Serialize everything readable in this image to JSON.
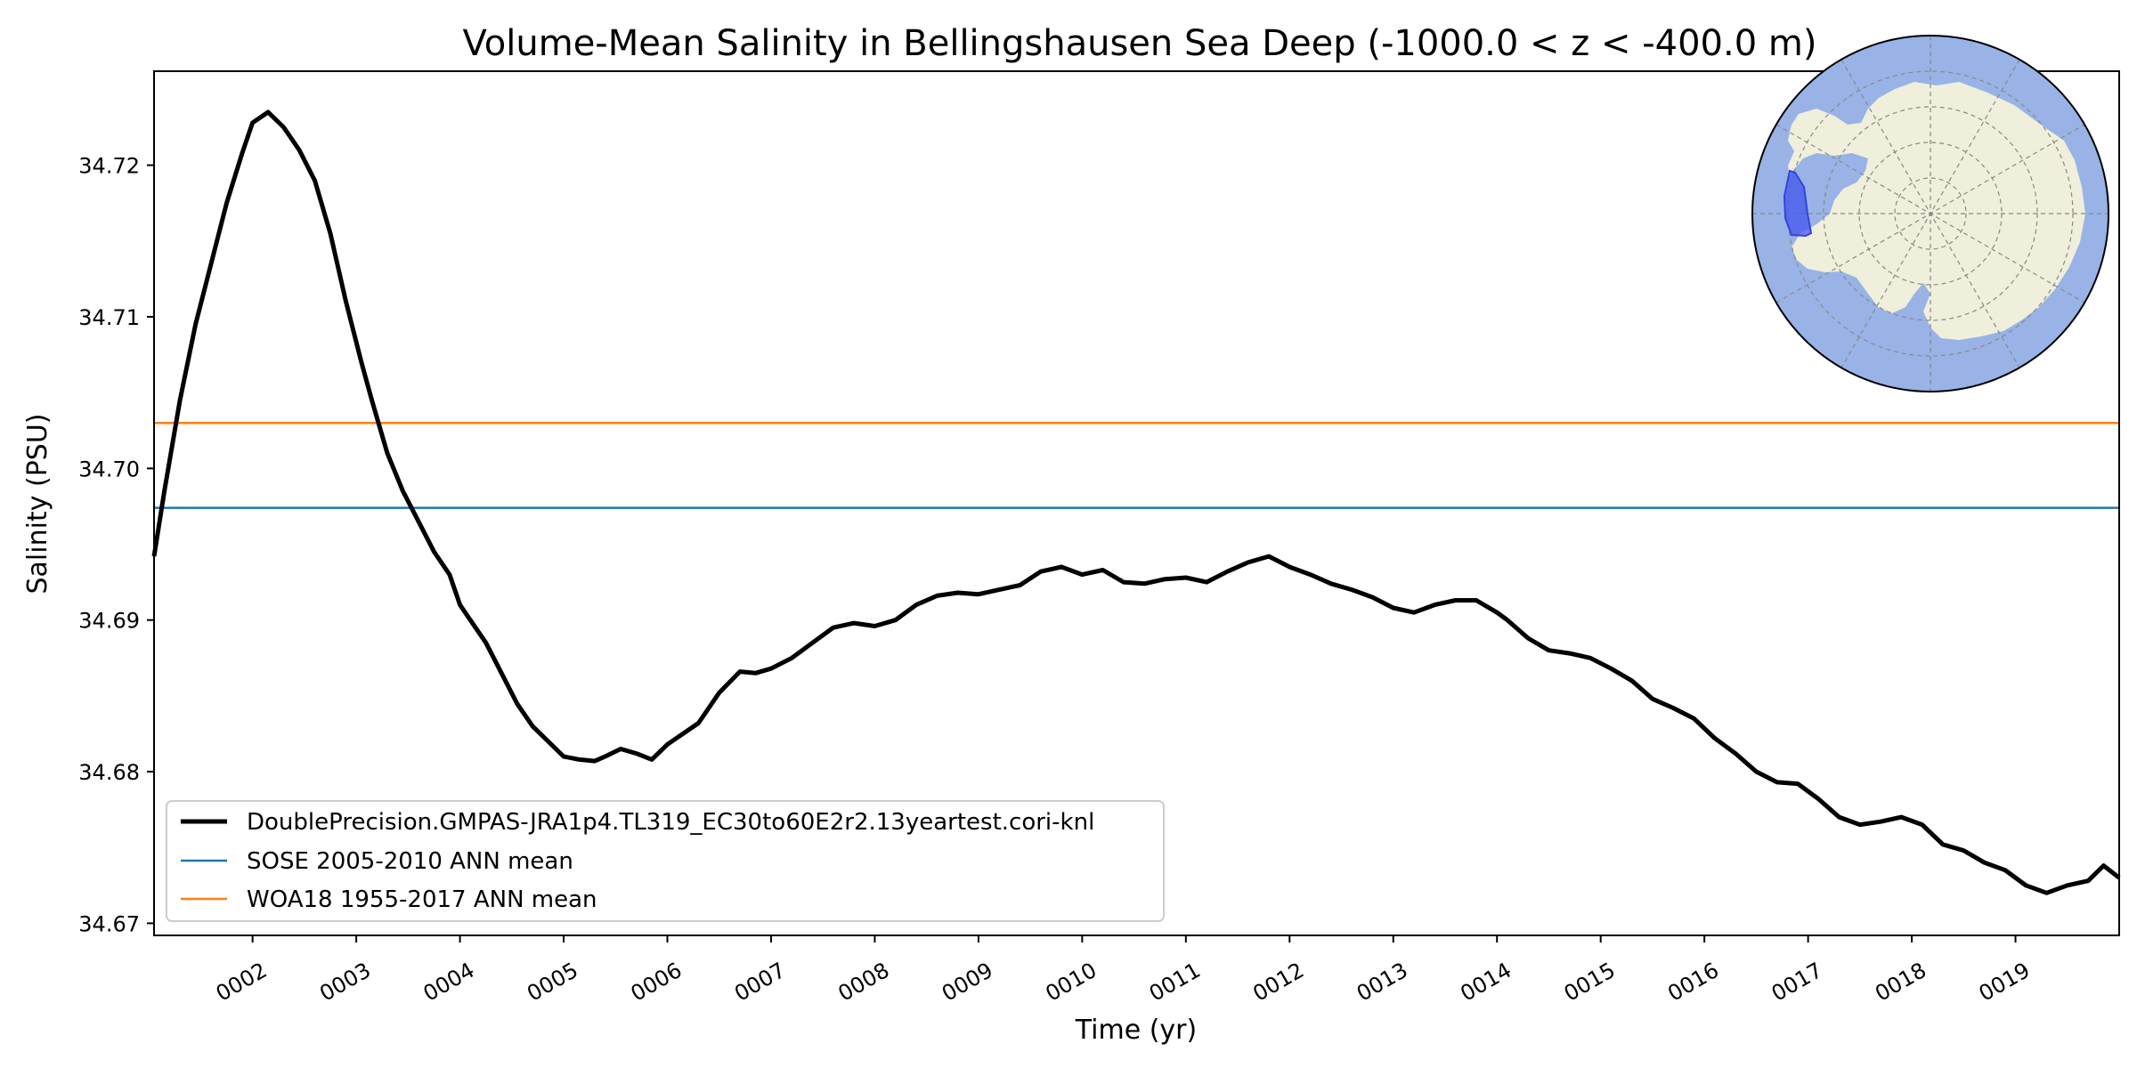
{
  "chart_data": {
    "type": "line",
    "title": "Volume-Mean Salinity in Bellingshausen Sea Deep (-1000.0 < z < -400.0 m)",
    "xlabel": "Time (yr)",
    "ylabel": "Salinity (PSU)",
    "xlim": [
      1.05,
      20.0
    ],
    "ylim": [
      34.6692,
      34.7262
    ],
    "x_ticks": [
      2,
      3,
      4,
      5,
      6,
      7,
      8,
      9,
      10,
      11,
      12,
      13,
      14,
      15,
      16,
      17,
      18,
      19
    ],
    "x_tick_labels": [
      "0002",
      "0003",
      "0004",
      "0005",
      "0006",
      "0007",
      "0008",
      "0009",
      "0010",
      "0011",
      "0012",
      "0013",
      "0014",
      "0015",
      "0016",
      "0017",
      "0018",
      "0019"
    ],
    "y_ticks": [
      34.67,
      34.68,
      34.69,
      34.7,
      34.71,
      34.72
    ],
    "y_tick_labels": [
      "34.67",
      "34.68",
      "34.69",
      "34.70",
      "34.71",
      "34.72"
    ],
    "grid": false,
    "legend_position": "lower-left",
    "series": [
      {
        "name": "DoublePrecision.GMPAS-JRA1p4.TL319_EC30to60E2r2.13yeartest.cori-knl",
        "color": "#000000",
        "style": "line",
        "x": [
          1.05,
          1.15,
          1.3,
          1.45,
          1.6,
          1.75,
          1.9,
          2.0,
          2.15,
          2.3,
          2.45,
          2.6,
          2.75,
          2.9,
          3.05,
          3.15,
          3.3,
          3.45,
          3.6,
          3.75,
          3.9,
          4.0,
          4.1,
          4.25,
          4.4,
          4.55,
          4.7,
          4.85,
          5.0,
          5.15,
          5.3,
          5.4,
          5.55,
          5.7,
          5.85,
          6.0,
          6.15,
          6.3,
          6.5,
          6.7,
          6.85,
          7.0,
          7.2,
          7.4,
          7.6,
          7.8,
          8.0,
          8.2,
          8.4,
          8.6,
          8.8,
          9.0,
          9.2,
          9.4,
          9.6,
          9.8,
          10.0,
          10.2,
          10.4,
          10.6,
          10.8,
          11.0,
          11.2,
          11.4,
          11.6,
          11.8,
          12.0,
          12.2,
          12.4,
          12.6,
          12.8,
          13.0,
          13.2,
          13.4,
          13.6,
          13.8,
          14.0,
          14.1,
          14.3,
          14.5,
          14.7,
          14.9,
          15.1,
          15.3,
          15.5,
          15.7,
          15.9,
          16.1,
          16.3,
          16.5,
          16.7,
          16.9,
          17.1,
          17.3,
          17.5,
          17.7,
          17.9,
          18.1,
          18.3,
          18.5,
          18.7,
          18.9,
          19.1,
          19.3,
          19.5,
          19.7,
          19.85,
          20.0
        ],
        "y": [
          34.6942,
          34.6985,
          34.7045,
          34.7095,
          34.7135,
          34.7175,
          34.7208,
          34.7228,
          34.7235,
          34.7225,
          34.721,
          34.719,
          34.7155,
          34.711,
          34.707,
          34.7045,
          34.701,
          34.6985,
          34.6965,
          34.6945,
          34.693,
          34.691,
          34.69,
          34.6885,
          34.6865,
          34.6845,
          34.683,
          34.682,
          34.681,
          34.6808,
          34.6807,
          34.681,
          34.6815,
          34.6812,
          34.6808,
          34.6818,
          34.6825,
          34.6832,
          34.6852,
          34.6866,
          34.6865,
          34.6868,
          34.6875,
          34.6885,
          34.6895,
          34.6898,
          34.6896,
          34.69,
          34.691,
          34.6916,
          34.6918,
          34.6917,
          34.692,
          34.6923,
          34.6932,
          34.6935,
          34.693,
          34.6933,
          34.6925,
          34.6924,
          34.6927,
          34.6928,
          34.6925,
          34.6932,
          34.6938,
          34.6942,
          34.6935,
          34.693,
          34.6924,
          34.692,
          34.6915,
          34.6908,
          34.6905,
          34.691,
          34.6913,
          34.6913,
          34.6905,
          34.69,
          34.6888,
          34.688,
          34.6878,
          34.6875,
          34.6868,
          34.686,
          34.6848,
          34.6842,
          34.6835,
          34.6822,
          34.6812,
          34.68,
          34.6793,
          34.6792,
          34.6782,
          34.677,
          34.6765,
          34.6767,
          34.677,
          34.6765,
          34.6752,
          34.6748,
          34.674,
          34.6735,
          34.6725,
          34.672,
          34.6725,
          34.6728,
          34.6738,
          34.673
        ]
      },
      {
        "name": "SOSE 2005-2010 ANN mean",
        "color": "#1f77b4",
        "style": "hline",
        "value": 34.6974
      },
      {
        "name": "WOA18 1955-2017 ANN mean",
        "color": "#ff7f0e",
        "style": "hline",
        "value": 34.703
      }
    ],
    "inset_map": {
      "description": "Antarctic polar stereographic map with the region highlighted",
      "ocean_color": "#99b3e6",
      "land_color": "#efefdb",
      "region_color": "#4455ee"
    }
  }
}
